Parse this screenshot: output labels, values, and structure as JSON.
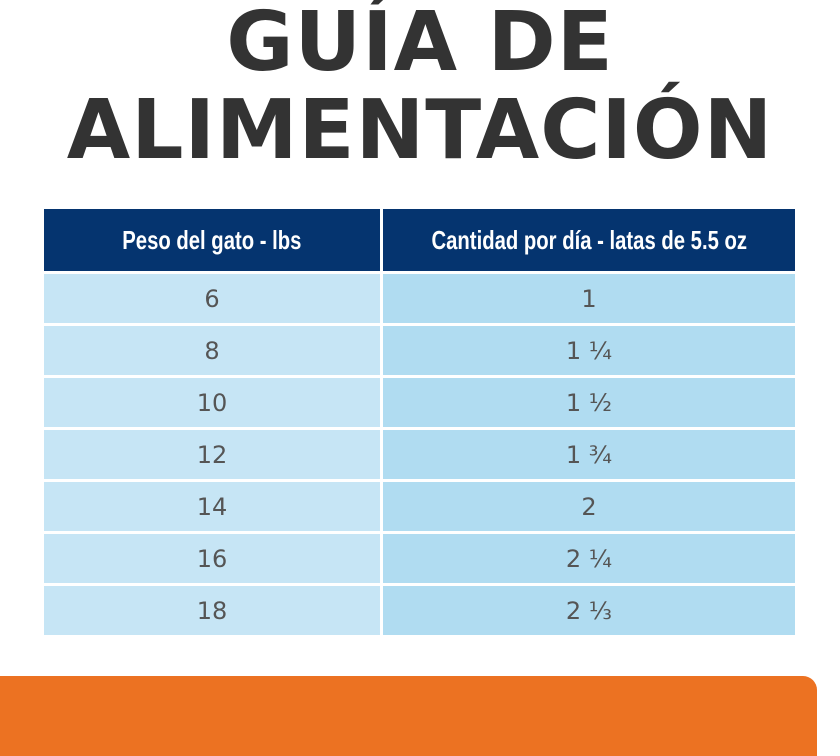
{
  "title": {
    "line1": "GUÍA DE",
    "line2": "ALIMENTACIÓN"
  },
  "table": {
    "headers": [
      "Peso del gato - lbs",
      "Cantidad por día - latas de 5.5 oz"
    ],
    "rows": [
      {
        "weight": "6",
        "amount": "1"
      },
      {
        "weight": "8",
        "amount": "1 ¼"
      },
      {
        "weight": "10",
        "amount": "1 ½"
      },
      {
        "weight": "12",
        "amount": "1 ¾"
      },
      {
        "weight": "14",
        "amount": "2"
      },
      {
        "weight": "16",
        "amount": "2 ¼"
      },
      {
        "weight": "18",
        "amount": "2 ⅓"
      }
    ]
  },
  "colors": {
    "title_text": "#333333",
    "header_bg": "#05346f",
    "col1_bg": "#c6e5f5",
    "col2_bg": "#b0dcf1",
    "orange_bar": "#ec7222"
  }
}
